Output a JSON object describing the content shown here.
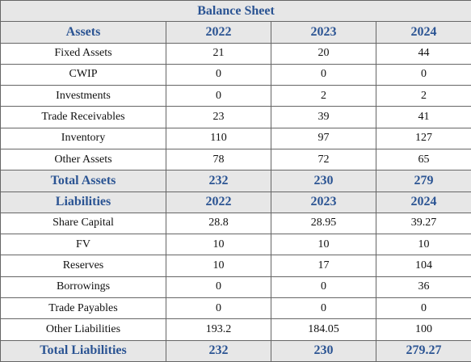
{
  "title": "Balance Sheet",
  "assets": {
    "header": [
      "Assets",
      "2022",
      "2023",
      "2024"
    ],
    "rows": [
      [
        "Fixed Assets",
        "21",
        "20",
        "44"
      ],
      [
        "CWIP",
        "0",
        "0",
        "0"
      ],
      [
        "Investments",
        "0",
        "2",
        "2"
      ],
      [
        "Trade Receivables",
        "23",
        "39",
        "41"
      ],
      [
        "Inventory",
        "110",
        "97",
        "127"
      ],
      [
        "Other Assets",
        "78",
        "72",
        "65"
      ]
    ],
    "total": [
      "Total Assets",
      "232",
      "230",
      "279"
    ]
  },
  "liabilities": {
    "header": [
      "Liabilities",
      "2022",
      "2023",
      "2024"
    ],
    "rows": [
      [
        "Share Capital",
        "28.8",
        "28.95",
        "39.27"
      ],
      [
        "FV",
        "10",
        "10",
        "10"
      ],
      [
        "Reserves",
        "10",
        "17",
        "104"
      ],
      [
        "Borrowings",
        "0",
        "0",
        "36"
      ],
      [
        "Trade Payables",
        "0",
        "0",
        "0"
      ],
      [
        "Other Liabilities",
        "193.2",
        "184.05",
        "100"
      ]
    ],
    "total": [
      "Total Liabilities",
      "232",
      "230",
      "279.27"
    ]
  }
}
